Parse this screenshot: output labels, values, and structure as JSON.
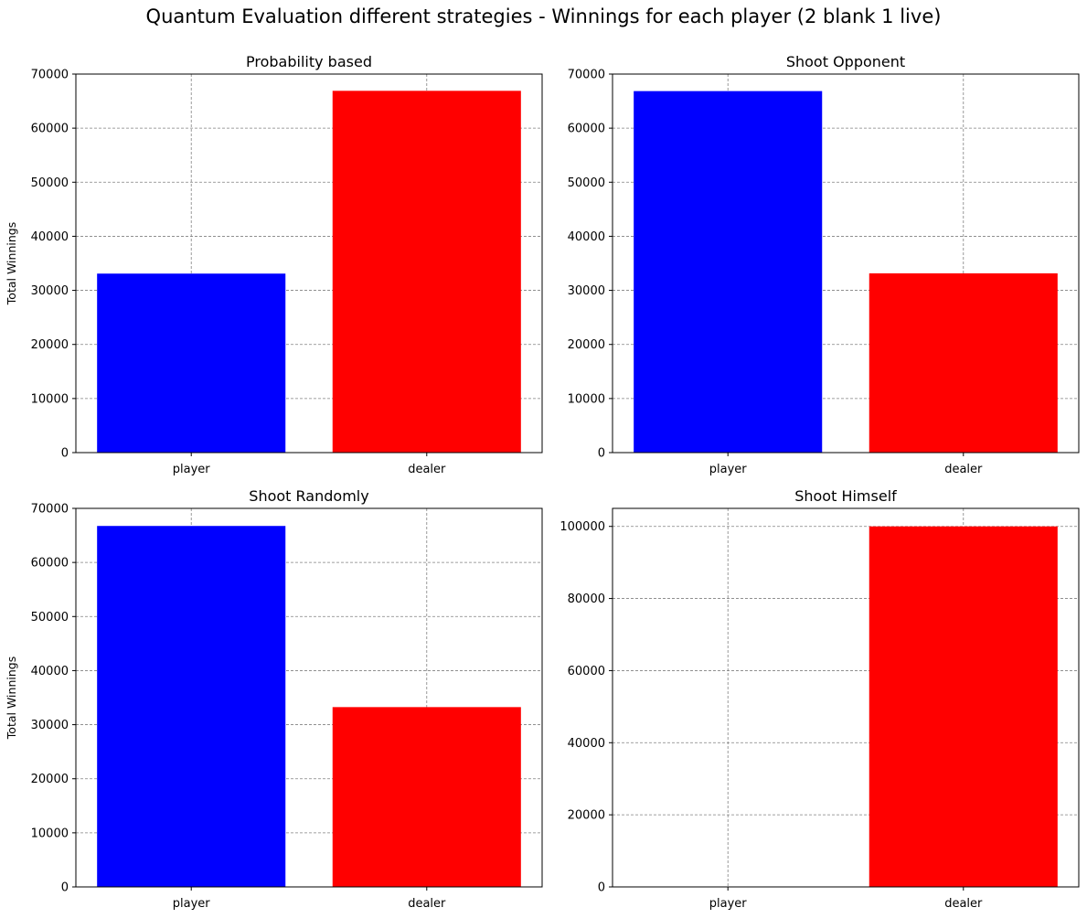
{
  "figure_title": "Quantum Evaluation different strategies - Winnings for each player (2 blank 1 live)",
  "chart_data": [
    {
      "type": "bar",
      "title": "Probability based",
      "categories": [
        "player",
        "dealer"
      ],
      "values": [
        33100,
        66900
      ],
      "colors": [
        "#0000ff",
        "#ff0000"
      ],
      "ylabel": "Total Winnings",
      "ylim": [
        0,
        70000
      ],
      "yticks": [
        0,
        10000,
        20000,
        30000,
        40000,
        50000,
        60000,
        70000
      ],
      "grid": true
    },
    {
      "type": "bar",
      "title": "Shoot Opponent",
      "categories": [
        "player",
        "dealer"
      ],
      "values": [
        66850,
        33150
      ],
      "colors": [
        "#0000ff",
        "#ff0000"
      ],
      "ylabel": "",
      "ylim": [
        0,
        70000
      ],
      "yticks": [
        0,
        10000,
        20000,
        30000,
        40000,
        50000,
        60000,
        70000
      ],
      "grid": true
    },
    {
      "type": "bar",
      "title": "Shoot Randomly",
      "categories": [
        "player",
        "dealer"
      ],
      "values": [
        66750,
        33250
      ],
      "colors": [
        "#0000ff",
        "#ff0000"
      ],
      "ylabel": "Total Winnings",
      "ylim": [
        0,
        70000
      ],
      "yticks": [
        0,
        10000,
        20000,
        30000,
        40000,
        50000,
        60000,
        70000
      ],
      "grid": true
    },
    {
      "type": "bar",
      "title": "Shoot Himself",
      "categories": [
        "player",
        "dealer"
      ],
      "values": [
        0,
        100000
      ],
      "colors": [
        "#0000ff",
        "#ff0000"
      ],
      "ylabel": "",
      "ylim": [
        0,
        105000
      ],
      "yticks": [
        0,
        20000,
        40000,
        60000,
        80000,
        100000
      ],
      "grid": true
    }
  ]
}
